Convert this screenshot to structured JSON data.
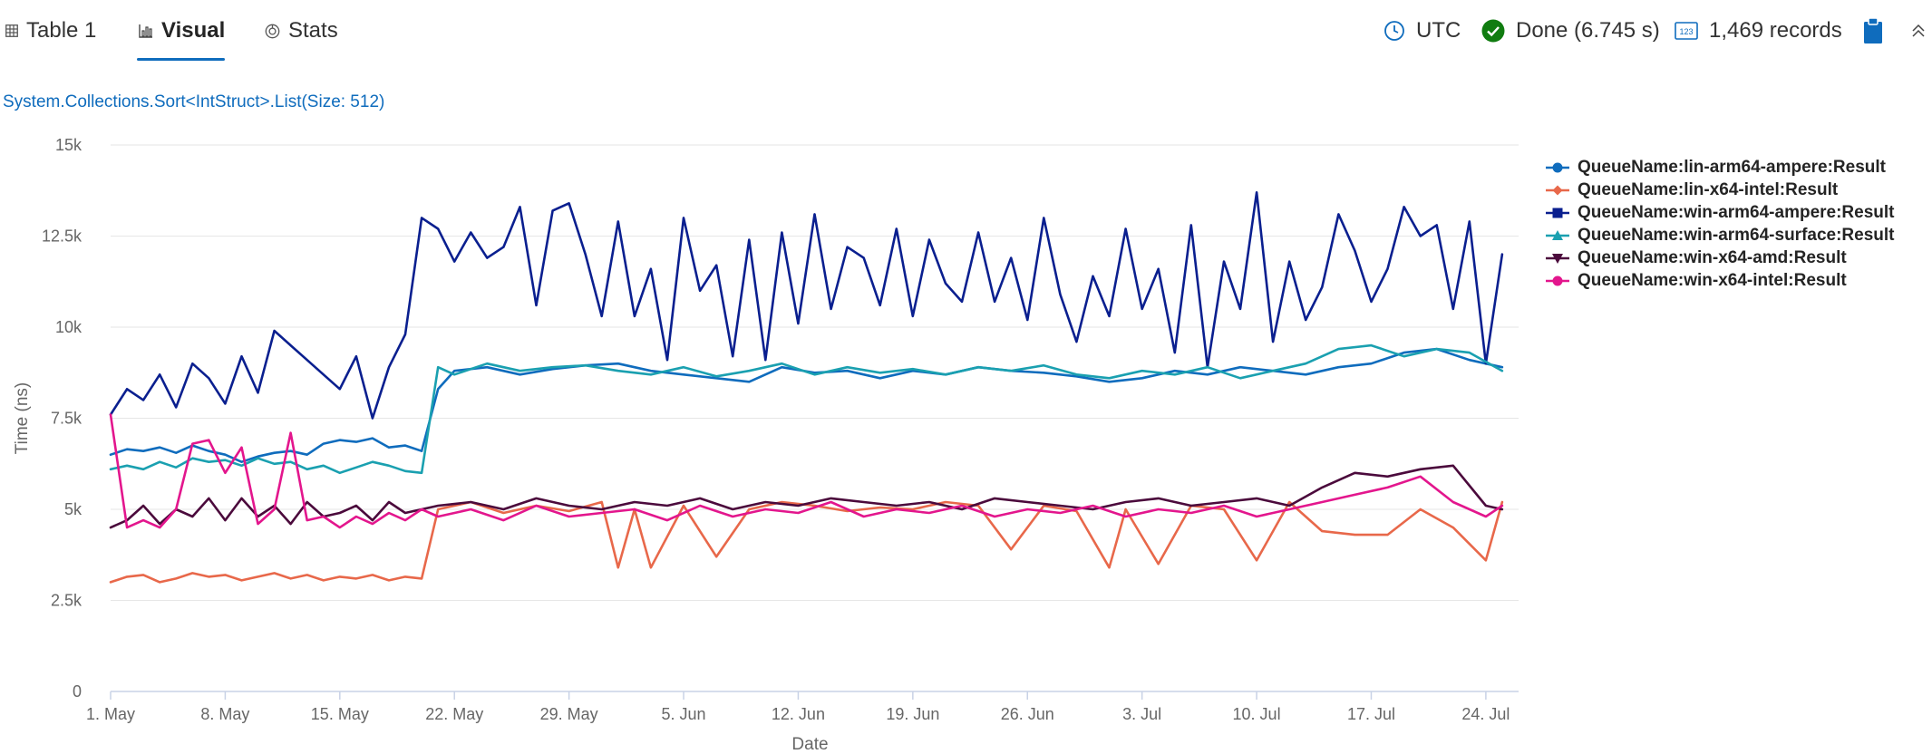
{
  "tabs": [
    {
      "label": "Table 1",
      "icon": "table-icon"
    },
    {
      "label": "Visual",
      "icon": "bar-chart-icon",
      "active": true
    },
    {
      "label": "Stats",
      "icon": "stats-icon"
    }
  ],
  "status": {
    "timezone": "UTC",
    "state": "Done (6.745 s)",
    "records": "1,469 records"
  },
  "colors": {
    "accent": "#0f6cbd",
    "done": "#107c10"
  },
  "chart_data": {
    "type": "line",
    "title": "System.Collections.Sort<IntStruct>.List(Size: 512)",
    "xlabel": "Date",
    "ylabel": "Time (ns)",
    "xlim": [
      "2023-05-01",
      "2023-07-26"
    ],
    "ylim": [
      0,
      15000
    ],
    "yticks": [
      0,
      2500,
      5000,
      7500,
      10000,
      12500,
      15000
    ],
    "ytick_labels": [
      "0",
      "2.5k",
      "5k",
      "7.5k",
      "10k",
      "12.5k",
      "15k"
    ],
    "xticks": [
      "2023-05-01",
      "2023-05-08",
      "2023-05-15",
      "2023-05-22",
      "2023-05-29",
      "2023-06-05",
      "2023-06-12",
      "2023-06-19",
      "2023-06-26",
      "2023-07-03",
      "2023-07-10",
      "2023-07-17",
      "2023-07-24"
    ],
    "xtick_labels": [
      "1. May",
      "8. May",
      "15. May",
      "22. May",
      "29. May",
      "5. Jun",
      "12. Jun",
      "19. Jun",
      "26. Jun",
      "3. Jul",
      "10. Jul",
      "17. Jul",
      "24. Jul"
    ],
    "grid": true,
    "legend_position": "right",
    "series": [
      {
        "name": "QueueName:lin-arm64-ampere:Result",
        "color": "#0f6cbd",
        "marker": "circle",
        "x": [
          "2023-05-01",
          "2023-05-02",
          "2023-05-03",
          "2023-05-04",
          "2023-05-05",
          "2023-05-06",
          "2023-05-07",
          "2023-05-08",
          "2023-05-09",
          "2023-05-10",
          "2023-05-11",
          "2023-05-12",
          "2023-05-13",
          "2023-05-14",
          "2023-05-15",
          "2023-05-16",
          "2023-05-17",
          "2023-05-18",
          "2023-05-19",
          "2023-05-20",
          "2023-05-21",
          "2023-05-22",
          "2023-05-24",
          "2023-05-26",
          "2023-05-28",
          "2023-05-30",
          "2023-06-01",
          "2023-06-03",
          "2023-06-05",
          "2023-06-07",
          "2023-06-09",
          "2023-06-11",
          "2023-06-13",
          "2023-06-15",
          "2023-06-17",
          "2023-06-19",
          "2023-06-21",
          "2023-06-23",
          "2023-06-25",
          "2023-06-27",
          "2023-06-29",
          "2023-07-01",
          "2023-07-03",
          "2023-07-05",
          "2023-07-07",
          "2023-07-09",
          "2023-07-11",
          "2023-07-13",
          "2023-07-15",
          "2023-07-17",
          "2023-07-19",
          "2023-07-21",
          "2023-07-23",
          "2023-07-25"
        ],
        "y": [
          6500,
          6650,
          6600,
          6700,
          6550,
          6750,
          6600,
          6500,
          6300,
          6450,
          6550,
          6600,
          6500,
          6800,
          6900,
          6850,
          6950,
          6700,
          6750,
          6600,
          8300,
          8800,
          8900,
          8700,
          8850,
          8950,
          9000,
          8800,
          8700,
          8600,
          8500,
          8900,
          8750,
          8800,
          8600,
          8800,
          8700,
          8900,
          8800,
          8750,
          8650,
          8500,
          8600,
          8800,
          8700,
          8900,
          8800,
          8700,
          8900,
          9000,
          9300,
          9400,
          9100,
          8900
        ]
      },
      {
        "name": "QueueName:lin-x64-intel:Result",
        "color": "#e8684a",
        "marker": "diamond",
        "x": [
          "2023-05-01",
          "2023-05-02",
          "2023-05-03",
          "2023-05-04",
          "2023-05-05",
          "2023-05-06",
          "2023-05-07",
          "2023-05-08",
          "2023-05-09",
          "2023-05-10",
          "2023-05-11",
          "2023-05-12",
          "2023-05-13",
          "2023-05-14",
          "2023-05-15",
          "2023-05-16",
          "2023-05-17",
          "2023-05-18",
          "2023-05-19",
          "2023-05-20",
          "2023-05-21",
          "2023-05-23",
          "2023-05-25",
          "2023-05-27",
          "2023-05-29",
          "2023-05-31",
          "2023-06-01",
          "2023-06-02",
          "2023-06-03",
          "2023-06-05",
          "2023-06-07",
          "2023-06-09",
          "2023-06-11",
          "2023-06-13",
          "2023-06-15",
          "2023-06-17",
          "2023-06-19",
          "2023-06-21",
          "2023-06-23",
          "2023-06-25",
          "2023-06-27",
          "2023-06-29",
          "2023-07-01",
          "2023-07-02",
          "2023-07-04",
          "2023-07-06",
          "2023-07-08",
          "2023-07-10",
          "2023-07-12",
          "2023-07-14",
          "2023-07-16",
          "2023-07-18",
          "2023-07-20",
          "2023-07-22",
          "2023-07-24",
          "2023-07-25"
        ],
        "y": [
          3000,
          3150,
          3200,
          3000,
          3100,
          3250,
          3150,
          3200,
          3050,
          3150,
          3250,
          3100,
          3200,
          3050,
          3150,
          3100,
          3200,
          3050,
          3150,
          3100,
          5000,
          5200,
          4900,
          5100,
          4950,
          5200,
          3400,
          5000,
          3400,
          5100,
          3700,
          5000,
          5200,
          5100,
          4950,
          5050,
          5000,
          5200,
          5100,
          3900,
          5100,
          4950,
          3400,
          5000,
          3500,
          5100,
          5000,
          3600,
          5200,
          4400,
          4300,
          4300,
          5000,
          4500,
          3600,
          5200
        ]
      },
      {
        "name": "QueueName:win-arm64-ampere:Result",
        "color": "#0a1f8f",
        "marker": "square",
        "x": [
          "2023-05-01",
          "2023-05-02",
          "2023-05-03",
          "2023-05-04",
          "2023-05-05",
          "2023-05-06",
          "2023-05-07",
          "2023-05-08",
          "2023-05-09",
          "2023-05-10",
          "2023-05-11",
          "2023-05-12",
          "2023-05-13",
          "2023-05-14",
          "2023-05-15",
          "2023-05-16",
          "2023-05-17",
          "2023-05-18",
          "2023-05-19",
          "2023-05-20",
          "2023-05-21",
          "2023-05-22",
          "2023-05-23",
          "2023-05-24",
          "2023-05-25",
          "2023-05-26",
          "2023-05-27",
          "2023-05-28",
          "2023-05-29",
          "2023-05-30",
          "2023-05-31",
          "2023-06-01",
          "2023-06-02",
          "2023-06-03",
          "2023-06-04",
          "2023-06-05",
          "2023-06-06",
          "2023-06-07",
          "2023-06-08",
          "2023-06-09",
          "2023-06-10",
          "2023-06-11",
          "2023-06-12",
          "2023-06-13",
          "2023-06-14",
          "2023-06-15",
          "2023-06-16",
          "2023-06-17",
          "2023-06-18",
          "2023-06-19",
          "2023-06-20",
          "2023-06-21",
          "2023-06-22",
          "2023-06-23",
          "2023-06-24",
          "2023-06-25",
          "2023-06-26",
          "2023-06-27",
          "2023-06-28",
          "2023-06-29",
          "2023-06-30",
          "2023-07-01",
          "2023-07-02",
          "2023-07-03",
          "2023-07-04",
          "2023-07-05",
          "2023-07-06",
          "2023-07-07",
          "2023-07-08",
          "2023-07-09",
          "2023-07-10",
          "2023-07-11",
          "2023-07-12",
          "2023-07-13",
          "2023-07-14",
          "2023-07-15",
          "2023-07-16",
          "2023-07-17",
          "2023-07-18",
          "2023-07-19",
          "2023-07-20",
          "2023-07-21",
          "2023-07-22",
          "2023-07-23",
          "2023-07-24",
          "2023-07-25"
        ],
        "y": [
          7600,
          8300,
          8000,
          8700,
          7800,
          9000,
          8600,
          7900,
          9200,
          8200,
          9900,
          9500,
          9100,
          8700,
          8300,
          9200,
          7500,
          8900,
          9800,
          13000,
          12700,
          11800,
          12600,
          11900,
          12200,
          13300,
          10600,
          13200,
          13400,
          12000,
          10300,
          12900,
          10300,
          11600,
          9100,
          13000,
          11000,
          11700,
          9200,
          12400,
          9100,
          12600,
          10100,
          13100,
          10500,
          12200,
          11900,
          10600,
          12700,
          10300,
          12400,
          11200,
          10700,
          12600,
          10700,
          11900,
          10200,
          13000,
          10900,
          9600,
          11400,
          10300,
          12700,
          10500,
          11600,
          9300,
          12800,
          8900,
          11800,
          10500,
          13700,
          9600,
          11800,
          10200,
          11100,
          13100,
          12100,
          10700,
          11600,
          13300,
          12500,
          12800,
          10500,
          12900,
          9000,
          12000
        ]
      },
      {
        "name": "QueueName:win-arm64-surface:Result",
        "color": "#1aa0b0",
        "marker": "triangle",
        "x": [
          "2023-05-01",
          "2023-05-02",
          "2023-05-03",
          "2023-05-04",
          "2023-05-05",
          "2023-05-06",
          "2023-05-07",
          "2023-05-08",
          "2023-05-09",
          "2023-05-10",
          "2023-05-11",
          "2023-05-12",
          "2023-05-13",
          "2023-05-14",
          "2023-05-15",
          "2023-05-16",
          "2023-05-17",
          "2023-05-18",
          "2023-05-19",
          "2023-05-20",
          "2023-05-21",
          "2023-05-22",
          "2023-05-24",
          "2023-05-26",
          "2023-05-28",
          "2023-05-30",
          "2023-06-01",
          "2023-06-03",
          "2023-06-05",
          "2023-06-07",
          "2023-06-09",
          "2023-06-11",
          "2023-06-13",
          "2023-06-15",
          "2023-06-17",
          "2023-06-19",
          "2023-06-21",
          "2023-06-23",
          "2023-06-25",
          "2023-06-27",
          "2023-06-29",
          "2023-07-01",
          "2023-07-03",
          "2023-07-05",
          "2023-07-07",
          "2023-07-09",
          "2023-07-11",
          "2023-07-13",
          "2023-07-15",
          "2023-07-17",
          "2023-07-19",
          "2023-07-21",
          "2023-07-23",
          "2023-07-25"
        ],
        "y": [
          6100,
          6200,
          6100,
          6300,
          6150,
          6400,
          6300,
          6350,
          6200,
          6400,
          6250,
          6300,
          6100,
          6200,
          6000,
          6150,
          6300,
          6200,
          6050,
          6000,
          8900,
          8700,
          9000,
          8800,
          8900,
          8950,
          8800,
          8700,
          8900,
          8650,
          8800,
          9000,
          8700,
          8900,
          8750,
          8850,
          8700,
          8900,
          8800,
          8950,
          8700,
          8600,
          8800,
          8700,
          8900,
          8600,
          8800,
          9000,
          9400,
          9500,
          9200,
          9400,
          9300,
          8800
        ]
      },
      {
        "name": "QueueName:win-x64-amd:Result",
        "color": "#4b0a3c",
        "marker": "triangle-down",
        "x": [
          "2023-05-01",
          "2023-05-02",
          "2023-05-03",
          "2023-05-04",
          "2023-05-05",
          "2023-05-06",
          "2023-05-07",
          "2023-05-08",
          "2023-05-09",
          "2023-05-10",
          "2023-05-11",
          "2023-05-12",
          "2023-05-13",
          "2023-05-14",
          "2023-05-15",
          "2023-05-16",
          "2023-05-17",
          "2023-05-18",
          "2023-05-19",
          "2023-05-20",
          "2023-05-21",
          "2023-05-23",
          "2023-05-25",
          "2023-05-27",
          "2023-05-29",
          "2023-05-31",
          "2023-06-02",
          "2023-06-04",
          "2023-06-06",
          "2023-06-08",
          "2023-06-10",
          "2023-06-12",
          "2023-06-14",
          "2023-06-16",
          "2023-06-18",
          "2023-06-20",
          "2023-06-22",
          "2023-06-24",
          "2023-06-26",
          "2023-06-28",
          "2023-06-30",
          "2023-07-02",
          "2023-07-04",
          "2023-07-06",
          "2023-07-08",
          "2023-07-10",
          "2023-07-12",
          "2023-07-14",
          "2023-07-16",
          "2023-07-18",
          "2023-07-20",
          "2023-07-22",
          "2023-07-24",
          "2023-07-25"
        ],
        "y": [
          4500,
          4700,
          5100,
          4600,
          5000,
          4800,
          5300,
          4700,
          5300,
          4800,
          5100,
          4600,
          5200,
          4800,
          4900,
          5100,
          4700,
          5200,
          4900,
          5000,
          5100,
          5200,
          5000,
          5300,
          5100,
          5000,
          5200,
          5100,
          5300,
          5000,
          5200,
          5100,
          5300,
          5200,
          5100,
          5200,
          5000,
          5300,
          5200,
          5100,
          5000,
          5200,
          5300,
          5100,
          5200,
          5300,
          5100,
          5600,
          6000,
          5900,
          6100,
          6200,
          5100,
          5000
        ]
      },
      {
        "name": "QueueName:win-x64-intel:Result",
        "color": "#e3168d",
        "marker": "circle",
        "x": [
          "2023-05-01",
          "2023-05-02",
          "2023-05-03",
          "2023-05-04",
          "2023-05-05",
          "2023-05-06",
          "2023-05-07",
          "2023-05-08",
          "2023-05-09",
          "2023-05-10",
          "2023-05-11",
          "2023-05-12",
          "2023-05-13",
          "2023-05-14",
          "2023-05-15",
          "2023-05-16",
          "2023-05-17",
          "2023-05-18",
          "2023-05-19",
          "2023-05-20",
          "2023-05-21",
          "2023-05-23",
          "2023-05-25",
          "2023-05-27",
          "2023-05-29",
          "2023-05-31",
          "2023-06-02",
          "2023-06-04",
          "2023-06-06",
          "2023-06-08",
          "2023-06-10",
          "2023-06-12",
          "2023-06-14",
          "2023-06-16",
          "2023-06-18",
          "2023-06-20",
          "2023-06-22",
          "2023-06-24",
          "2023-06-26",
          "2023-06-28",
          "2023-06-30",
          "2023-07-02",
          "2023-07-04",
          "2023-07-06",
          "2023-07-08",
          "2023-07-10",
          "2023-07-12",
          "2023-07-14",
          "2023-07-16",
          "2023-07-18",
          "2023-07-20",
          "2023-07-22",
          "2023-07-24",
          "2023-07-25"
        ],
        "y": [
          7600,
          4500,
          4700,
          4500,
          5000,
          6800,
          6900,
          6000,
          6700,
          4600,
          5000,
          7100,
          4700,
          4800,
          4500,
          4800,
          4600,
          4900,
          4700,
          5000,
          4800,
          5000,
          4700,
          5100,
          4800,
          4900,
          5000,
          4700,
          5100,
          4800,
          5000,
          4900,
          5200,
          4800,
          5000,
          4900,
          5100,
          4800,
          5000,
          4900,
          5100,
          4800,
          5000,
          4900,
          5100,
          4800,
          5000,
          5200,
          5400,
          5600,
          5900,
          5200,
          4800,
          5100
        ]
      }
    ]
  }
}
